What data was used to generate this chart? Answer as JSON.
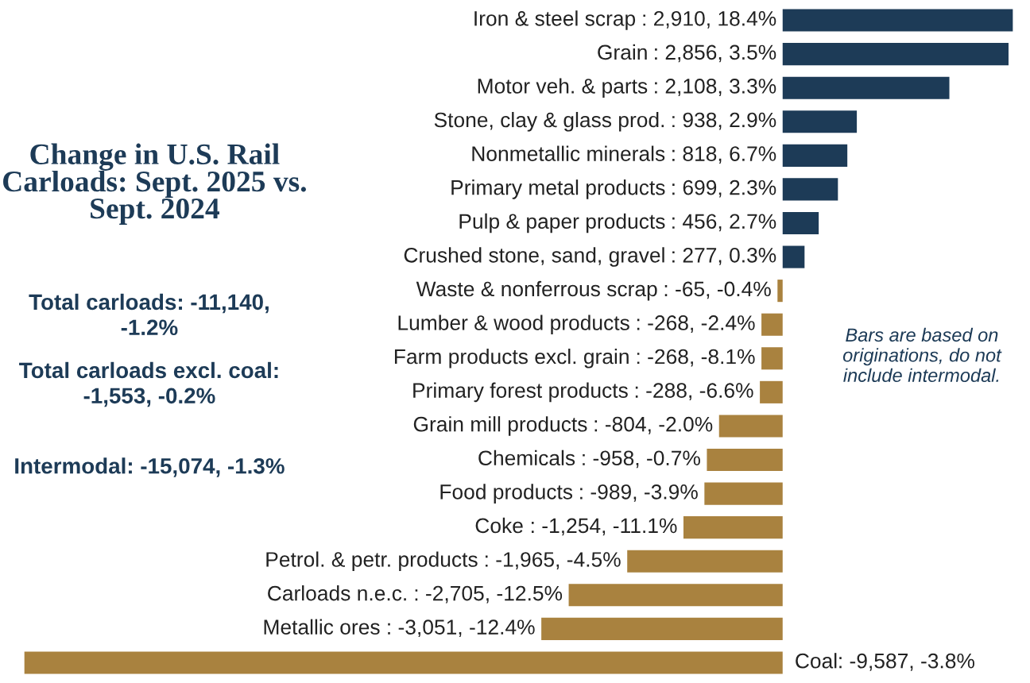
{
  "chart_data": {
    "type": "bar",
    "orientation": "horizontal",
    "title": "Change in U.S. Rail Carloads: Sept. 2025 vs. Sept. 2024",
    "categories": [
      "Iron & steel scrap",
      "Grain",
      "Motor veh. & parts",
      "Stone, clay & glass prod.",
      "Nonmetallic minerals",
      "Primary metal products",
      "Pulp & paper products",
      "Crushed stone, sand, gravel",
      "Waste & nonferrous scrap",
      "Lumber & wood products",
      "Farm products excl. grain",
      "Primary forest products",
      "Grain mill products",
      "Chemicals",
      "Food products",
      "Coke",
      "Petrol. & petr. products",
      "Carloads n.e.c.",
      "Metallic ores",
      "Coal"
    ],
    "values": [
      2910,
      2856,
      2108,
      938,
      818,
      699,
      456,
      277,
      -65,
      -268,
      -268,
      -288,
      -804,
      -958,
      -989,
      -1254,
      -1965,
      -2705,
      -3051,
      -9587
    ],
    "value_labels": [
      ": 2,910, 18.4%",
      ": 2,856, 3.5%",
      ": 2,108, 3.3%",
      ": 938, 2.9%",
      ": 818, 6.7%",
      ": 699, 2.3%",
      ": 456, 2.7%",
      ": 277, 0.3%",
      ": -65, -0.4%",
      ": -268, -2.4%",
      ": -268, -8.1%",
      ": -288, -6.6%",
      ": -804, -2.0%",
      ": -958, -0.7%",
      ": -989, -3.9%",
      ": -1,254, -11.1%",
      ": -1,965, -4.5%",
      ": -2,705, -12.5%",
      ": -3,051, -12.4%",
      ": -9,587, -3.8%"
    ],
    "colors": [
      "#1d3b57",
      "#1d3b57",
      "#1d3b57",
      "#1d3b57",
      "#1d3b57",
      "#1d3b57",
      "#1d3b57",
      "#1d3b57",
      "#a9823f",
      "#a9823f",
      "#a9823f",
      "#a9823f",
      "#a9823f",
      "#a9823f",
      "#a9823f",
      "#a9823f",
      "#a9823f",
      "#a9823f",
      "#a9823f",
      "#a9823f"
    ],
    "annotations": [
      "Total carloads: -11,140, -1.2%",
      "Total carloads excl. coal: -1,553, -0.2%",
      "Intermodal: -15,074, -1.3%",
      "Bars are based on originations, do not include intermodal."
    ]
  }
}
